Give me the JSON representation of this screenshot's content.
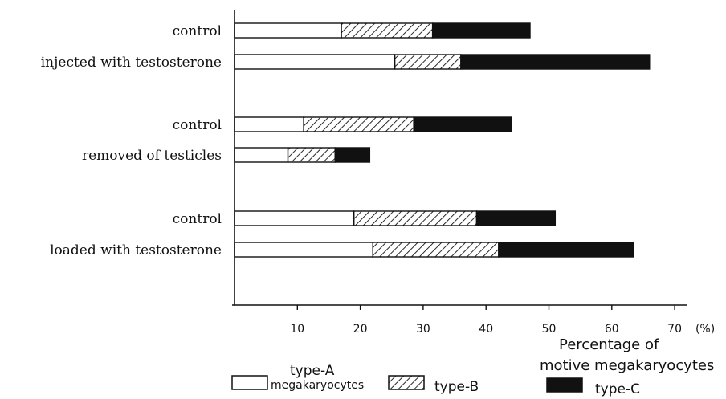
{
  "chart_data": {
    "type": "bar",
    "orientation": "horizontal",
    "stacked": true,
    "categories": [
      "control",
      "injected with testosterone",
      "control",
      "removed of testicles",
      "control",
      "loaded with testosterone"
    ],
    "series": [
      {
        "name": "type-A megakaryocytes",
        "values": [
          17,
          25.5,
          11,
          8.5,
          19,
          22
        ],
        "pattern": "white"
      },
      {
        "name": "type-B",
        "values": [
          14.5,
          10.5,
          17.5,
          7.5,
          19.5,
          20
        ],
        "pattern": "hatched"
      },
      {
        "name": "type-C",
        "values": [
          15.5,
          30,
          15.5,
          5.5,
          12.5,
          21.5
        ],
        "pattern": "black"
      }
    ],
    "x_ticks": [
      "10",
      "20",
      "30",
      "40",
      "50",
      "60",
      "70"
    ],
    "x_unit": "(%)",
    "xlabel_lines": [
      "Percentage of",
      "motive megakaryocytes"
    ],
    "xlim": [
      0,
      75
    ],
    "legend": {
      "type_a_line1": "type-A",
      "type_a_line2": "megakaryocytes",
      "type_b": "type-B",
      "type_c": "type-C"
    },
    "legend_position": "bottom",
    "grid": false,
    "colors": {
      "ink": "#111111",
      "fill_a": "#ffffff",
      "fill_c": "#111111"
    }
  }
}
